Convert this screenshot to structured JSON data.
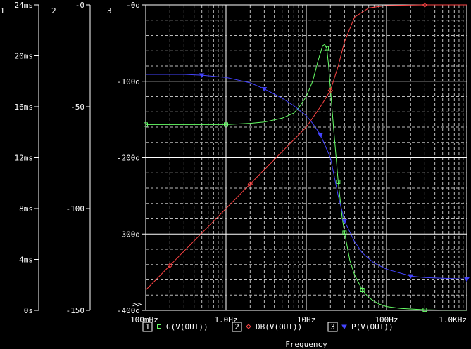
{
  "chart_data": {
    "type": "line",
    "xlabel": "Frequency",
    "x_scale": "log",
    "xlim": [
      0.1,
      1000
    ],
    "x_ticks": [
      0.1,
      1,
      10,
      100,
      1000
    ],
    "x_tick_labels": [
      "100mHz",
      "1.0Hz",
      "10Hz",
      "100Hz",
      "1.0KHz"
    ],
    "grid": true,
    "axes": [
      {
        "id": "1",
        "ylim": [
          0,
          24
        ],
        "ticks": [
          0,
          4,
          8,
          12,
          16,
          20,
          24
        ],
        "tick_labels": [
          "0s",
          "4ms",
          "8ms",
          "12ms",
          "16ms",
          "20ms",
          "24ms"
        ]
      },
      {
        "id": "2",
        "ylim": [
          -150,
          0
        ],
        "ticks": [
          -150,
          -100,
          -50,
          0
        ],
        "tick_labels": [
          "-150",
          "-100",
          "-50",
          "-0"
        ]
      },
      {
        "id": "3",
        "ylim": [
          -400,
          0
        ],
        "ticks": [
          -400,
          -300,
          -200,
          -100,
          0
        ],
        "tick_labels": [
          "-400d",
          "-300d",
          "-200d",
          "-100d",
          "-0d"
        ]
      }
    ],
    "series": [
      {
        "name": "G(V(OUT))",
        "axis": "1",
        "color": "#66ff66",
        "marker": "square",
        "x": [
          0.1,
          0.5,
          1,
          2,
          3,
          5,
          7,
          8,
          10,
          12,
          14,
          16,
          17,
          18,
          19,
          20,
          22,
          25,
          28,
          30,
          35,
          40,
          50,
          60,
          80,
          100,
          150,
          300,
          500,
          1000
        ],
        "y": [
          14.6,
          14.6,
          14.6,
          14.7,
          14.8,
          15.1,
          15.5,
          15.9,
          16.8,
          18,
          19.6,
          20.8,
          20.9,
          20.6,
          19.2,
          17.4,
          14.2,
          10.1,
          7.3,
          6.1,
          3.9,
          2.8,
          1.6,
          1,
          0.5,
          0.3,
          0.15,
          0.05,
          0.02,
          0.01
        ]
      },
      {
        "name": "DB(V(OUT))",
        "axis": "2",
        "color": "#ff4444",
        "marker": "diamond",
        "x": [
          0.1,
          0.2,
          0.5,
          1,
          2,
          5,
          10,
          15,
          20,
          25,
          30,
          40,
          60,
          100,
          300,
          1000
        ],
        "y": [
          -140,
          -128,
          -112,
          -100,
          -88,
          -72,
          -60,
          -50,
          -42,
          -30,
          -18,
          -6,
          -1.5,
          -0.3,
          0,
          0
        ]
      },
      {
        "name": "P(V(OUT))",
        "axis": "3",
        "color": "#4444ff",
        "marker": "triangle",
        "x": [
          0.1,
          0.3,
          0.5,
          1,
          2,
          3,
          5,
          7,
          10,
          12,
          15,
          20,
          25,
          30,
          40,
          50,
          70,
          100,
          200,
          300,
          500,
          1000
        ],
        "y": [
          -91,
          -91,
          -92,
          -95,
          -102,
          -110,
          -122,
          -132,
          -145,
          -155,
          -170,
          -200,
          -250,
          -283,
          -310,
          -325,
          -338,
          -346,
          -355,
          -357,
          -358,
          -359
        ]
      }
    ],
    "legend": [
      {
        "index": "1",
        "name": "G(V(OUT))"
      },
      {
        "index": "2",
        "name": "DB(V(OUT))"
      },
      {
        "index": "3",
        "name": "P(V(OUT))"
      }
    ],
    "legend_placement": "bottom",
    "prompt_marker": ">>"
  }
}
